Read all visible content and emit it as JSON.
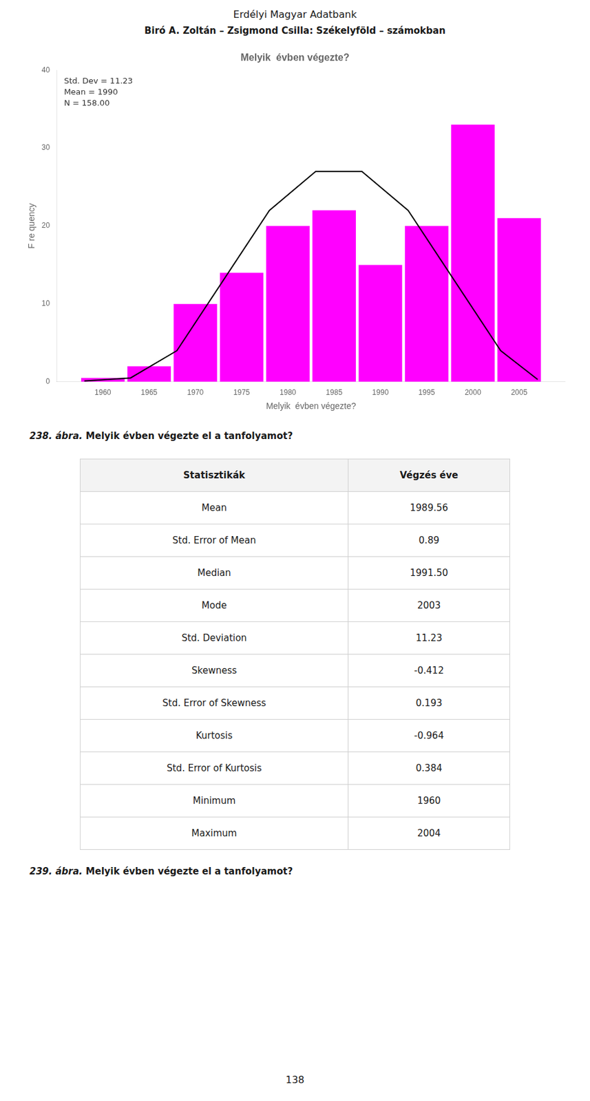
{
  "title_line1": "Erdélyi Magyar Adatbank",
  "title_line2": "Biró A. Zoltán – Zsigmond Csilla: Székelyföld – számokban",
  "chart_data": {
    "type": "histogram",
    "title": "Melyik  évben végezte?",
    "xlabel": "Melyik  évben végezte?",
    "ylabel": "F re quency",
    "bins": [
      1957.5,
      1962.5,
      1967.5,
      1972.5,
      1977.5,
      1982.5,
      1987.5,
      1992.5,
      1997.5,
      2002.5,
      2007.5
    ],
    "values": [
      0.5,
      2,
      10,
      14,
      20,
      22,
      15,
      20,
      33,
      21
    ],
    "color": "#ff00ff",
    "curve": {
      "type": "line",
      "x": [
        1958,
        1963,
        1968,
        1973,
        1978,
        1983,
        1988,
        1993,
        1998,
        2003,
        2007
      ],
      "values": [
        0.1,
        0.5,
        4,
        13,
        22,
        27,
        27,
        22,
        13,
        4,
        0.3
      ],
      "color": "#000000"
    },
    "xlim": [
      1955,
      2010
    ],
    "xticks": [
      1960,
      1965,
      1970,
      1975,
      1980,
      1985,
      1990,
      1995,
      2000,
      2005
    ],
    "ylim": [
      0,
      40
    ],
    "yticks": [
      0,
      10,
      20,
      30,
      40
    ],
    "grid": false,
    "annotation": "Std. Dev = 11.23\nMean = 1990\nN = 158.00"
  },
  "caption1": {
    "label": "238. ábra.",
    "text": " Melyik évben végezte el a tanfolyamot?"
  },
  "table": {
    "columns": [
      "Statisztikák",
      "Végzés éve"
    ],
    "rows": [
      [
        "Mean",
        "1989.56"
      ],
      [
        "Std. Error of Mean",
        "0.89"
      ],
      [
        "Median",
        "1991.50"
      ],
      [
        "Mode",
        "2003"
      ],
      [
        "Std. Deviation",
        "11.23"
      ],
      [
        "Skewness",
        "-0.412"
      ],
      [
        "Std. Error of Skewness",
        "0.193"
      ],
      [
        "Kurtosis",
        "-0.964"
      ],
      [
        "Std. Error of Kurtosis",
        "0.384"
      ],
      [
        "Minimum",
        "1960"
      ],
      [
        "Maximum",
        "2004"
      ]
    ]
  },
  "caption2": {
    "label": "239. ábra.",
    "text": " Melyik évben végezte el a tanfolyamot?"
  },
  "page_number": "138"
}
